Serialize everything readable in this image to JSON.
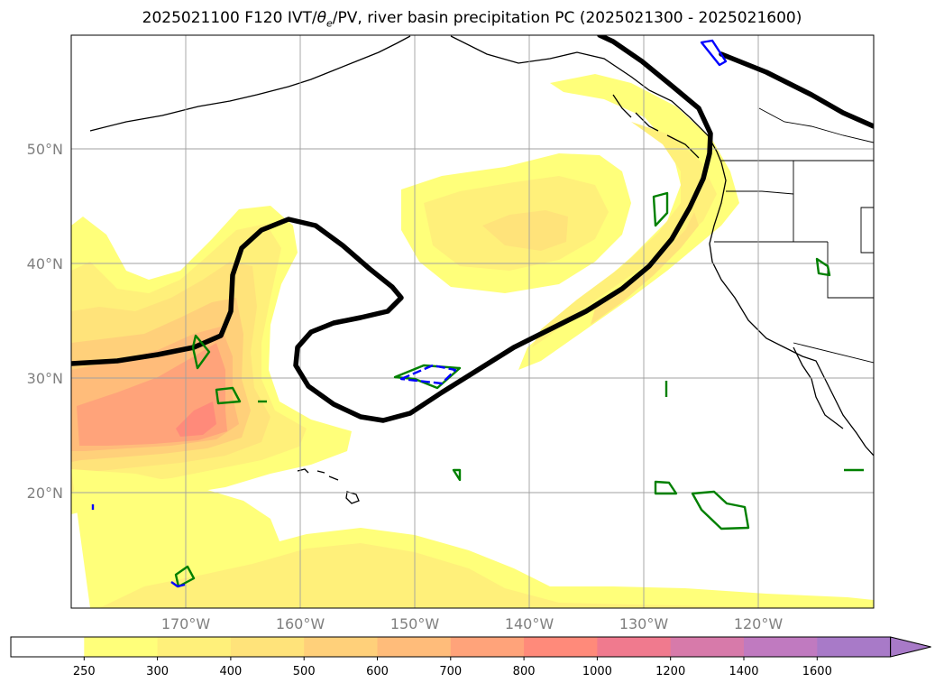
{
  "title": {
    "prefix": "2025021100 F120 IVT/",
    "theta": "θ",
    "sub": "e",
    "suffix": "/PV, river basin precipitation PC (2025021300 - 2025021600)"
  },
  "map": {
    "region": "North Pacific and western North America",
    "lat_labels": [
      "50°N",
      "40°N",
      "30°N",
      "20°N"
    ],
    "lon_labels": [
      "170°W",
      "160°W",
      "150°W",
      "140°W",
      "130°W",
      "120°W"
    ],
    "grid": true,
    "contour_colors": {
      "pv_line": "#000000",
      "basin_outline_1": "#008000",
      "basin_outline_2": "#0000ff"
    }
  },
  "colorbar": {
    "ticks": [
      "250",
      "300",
      "400",
      "500",
      "600",
      "700",
      "800",
      "1000",
      "1200",
      "1400",
      "1600"
    ],
    "colors": [
      "#ffffff",
      "#ffff7a",
      "#fff07a",
      "#ffe37a",
      "#ffd07a",
      "#ffbc7a",
      "#ffa37a",
      "#ff8a7a",
      "#f07a8e",
      "#d77aaa",
      "#c07ac0",
      "#a87ac8"
    ],
    "extend": "max"
  }
}
